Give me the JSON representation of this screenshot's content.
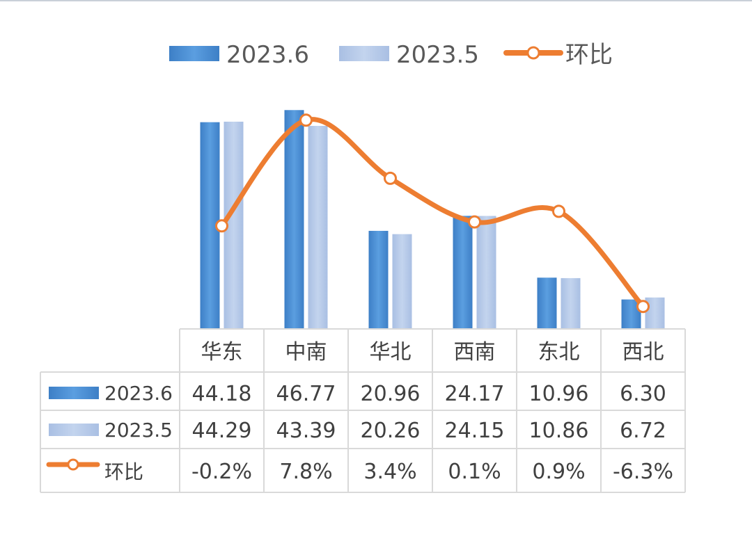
{
  "chart_data": {
    "type": "bar",
    "categories": [
      "华东",
      "中南",
      "华北",
      "西南",
      "东北",
      "西北"
    ],
    "series": [
      {
        "name": "2023.6",
        "kind": "bar",
        "color": "#4a8fd6",
        "values": [
          44.18,
          46.77,
          20.96,
          24.17,
          10.96,
          6.3
        ],
        "labels": [
          "44.18",
          "46.77",
          "20.96",
          "24.17",
          "10.96",
          "6.30"
        ]
      },
      {
        "name": "2023.5",
        "kind": "bar",
        "color": "#b4c7e7",
        "values": [
          44.29,
          43.39,
          20.26,
          24.15,
          10.86,
          6.72
        ],
        "labels": [
          "44.29",
          "43.39",
          "20.26",
          "24.15",
          "10.86",
          "6.72"
        ]
      },
      {
        "name": "环比",
        "kind": "line",
        "color": "#ed7d31",
        "smooth": true,
        "values": [
          -0.2,
          7.8,
          3.4,
          0.1,
          0.9,
          -6.3
        ],
        "labels": [
          "-0.2%",
          "7.8%",
          "3.4%",
          "0.1%",
          "0.9%",
          "-6.3%"
        ]
      }
    ],
    "bar_axis_range": [
      0,
      48
    ],
    "line_axis_range": [
      -8,
      9
    ],
    "legend_position": "top",
    "data_table": true,
    "grid": false
  }
}
